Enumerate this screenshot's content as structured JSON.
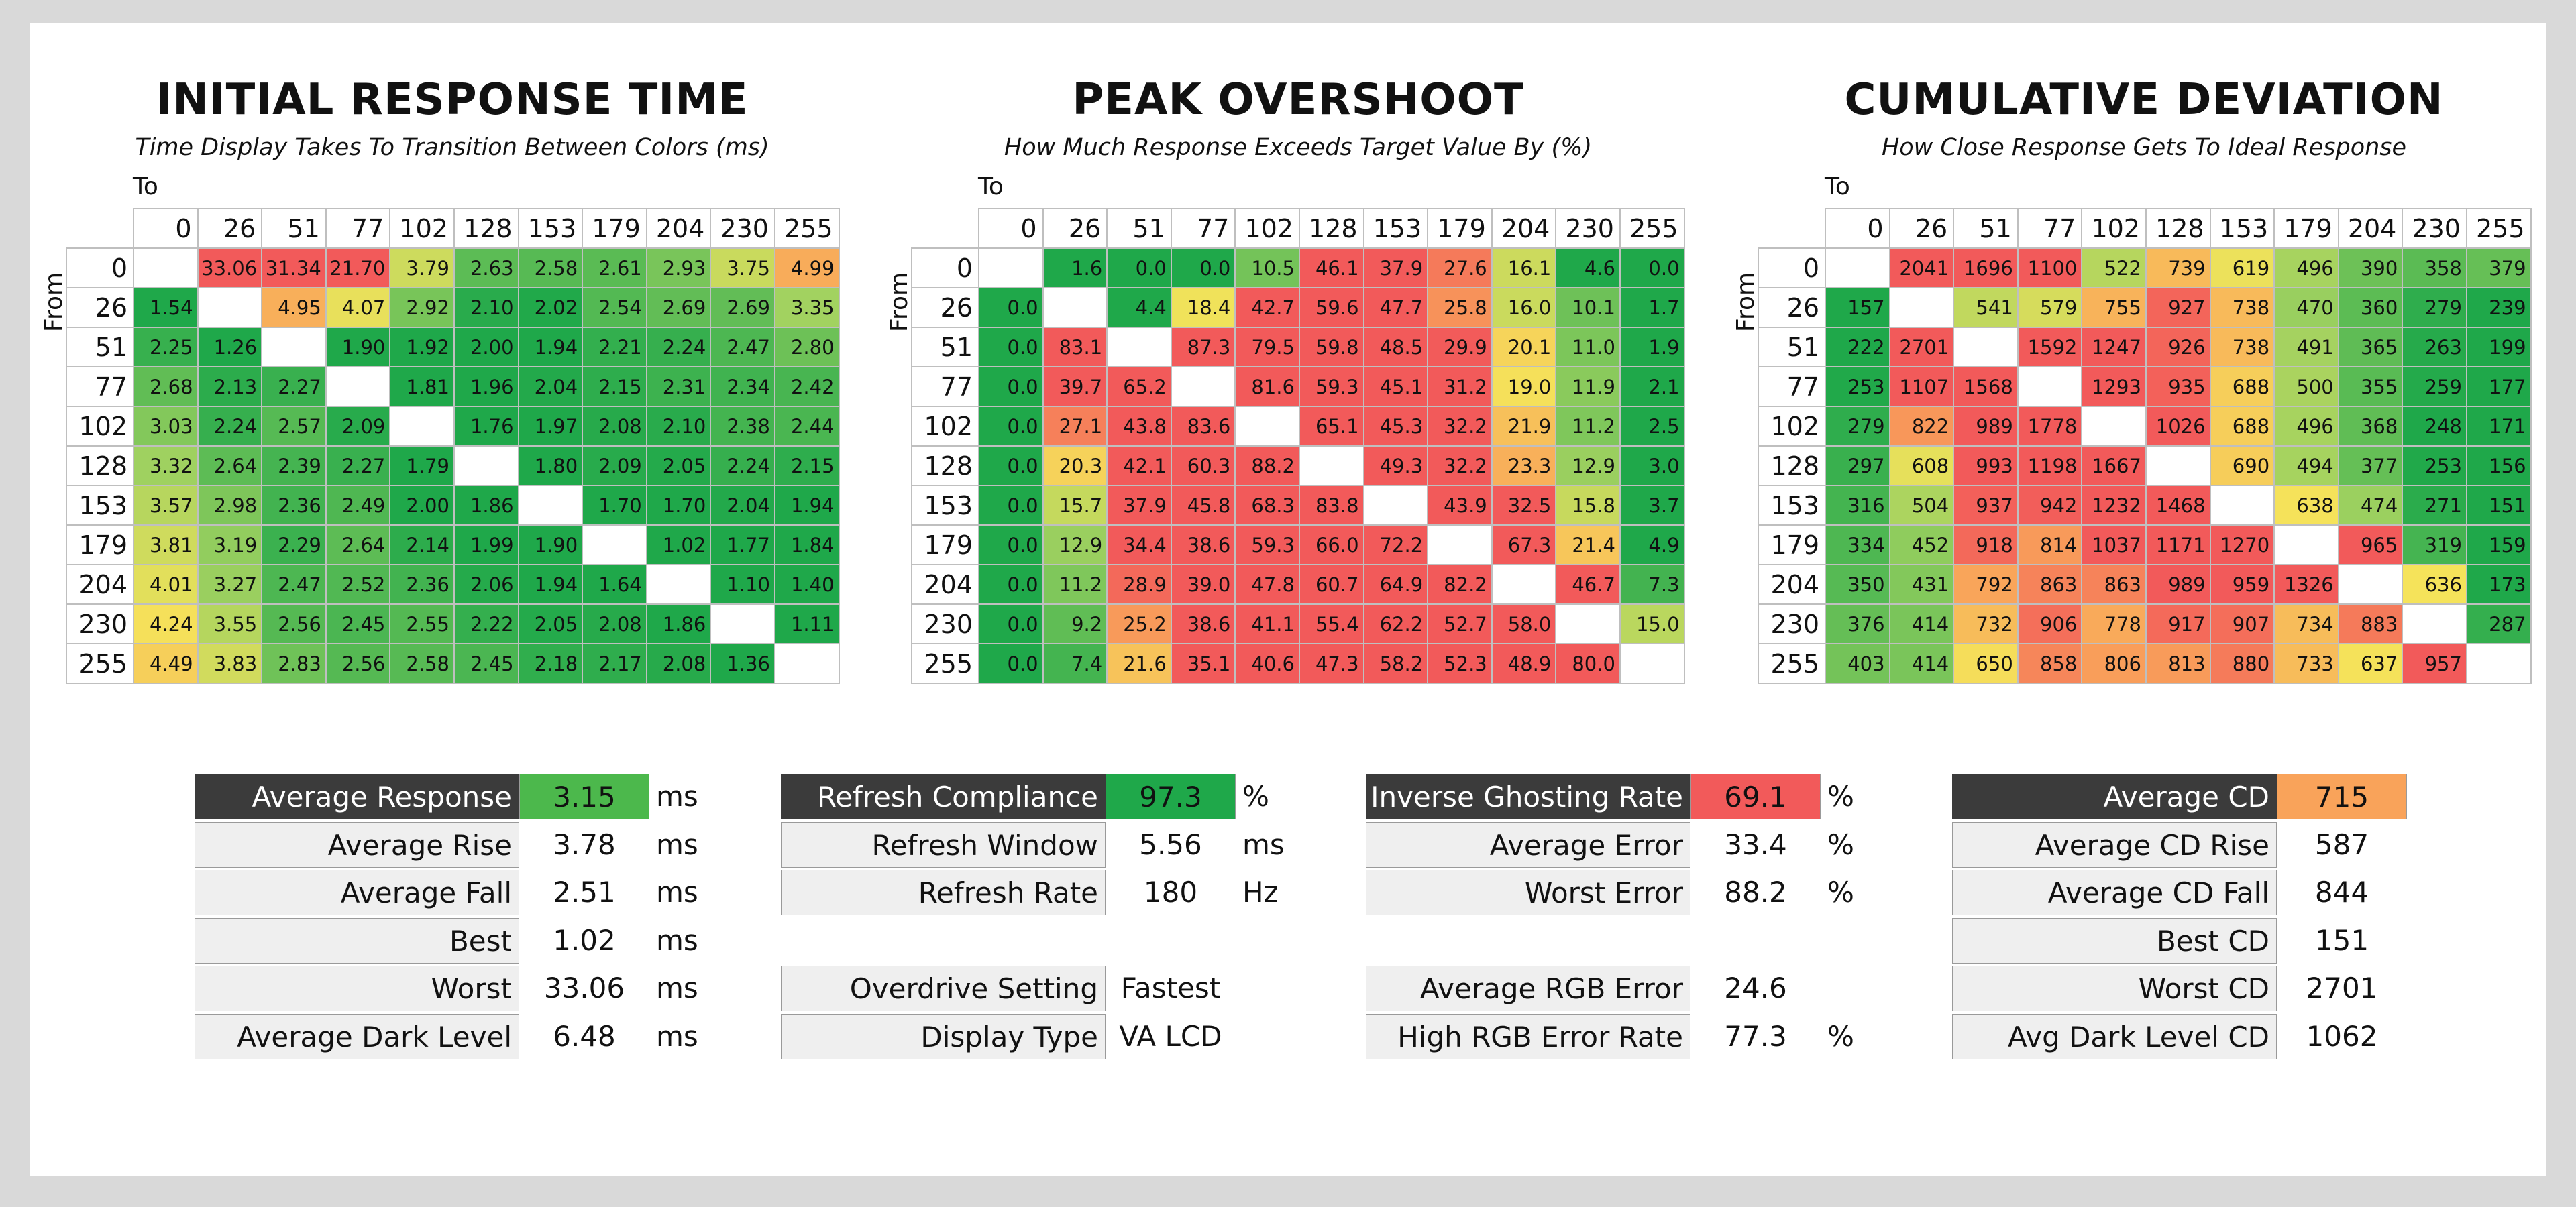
{
  "axis_labels": {
    "to": "To",
    "from": "From"
  },
  "chart_data": [
    {
      "type": "heatmap",
      "title": "INITIAL RESPONSE TIME",
      "subtitle": "Time Display Takes To Transition Between Colors (ms)",
      "x_categories": [
        "0",
        "26",
        "51",
        "77",
        "102",
        "128",
        "153",
        "179",
        "204",
        "230",
        "255"
      ],
      "y_categories": [
        "0",
        "26",
        "51",
        "77",
        "102",
        "128",
        "153",
        "179",
        "204",
        "230",
        "255"
      ],
      "xlabel": "To",
      "ylabel": "From",
      "values": [
        [
          null,
          "33.06",
          "31.34",
          "21.70",
          "3.79",
          "2.63",
          "2.58",
          "2.61",
          "2.93",
          "3.75",
          "4.99"
        ],
        [
          "1.54",
          null,
          "4.95",
          "4.07",
          "2.92",
          "2.10",
          "2.02",
          "2.54",
          "2.69",
          "2.69",
          "3.35"
        ],
        [
          "2.25",
          "1.26",
          null,
          "1.90",
          "1.92",
          "2.00",
          "1.94",
          "2.21",
          "2.24",
          "2.47",
          "2.80"
        ],
        [
          "2.68",
          "2.13",
          "2.27",
          null,
          "1.81",
          "1.96",
          "2.04",
          "2.15",
          "2.31",
          "2.34",
          "2.42"
        ],
        [
          "3.03",
          "2.24",
          "2.57",
          "2.09",
          null,
          "1.76",
          "1.97",
          "2.08",
          "2.10",
          "2.38",
          "2.44"
        ],
        [
          "3.32",
          "2.64",
          "2.39",
          "2.27",
          "1.79",
          null,
          "1.80",
          "2.09",
          "2.05",
          "2.24",
          "2.15"
        ],
        [
          "3.57",
          "2.98",
          "2.36",
          "2.49",
          "2.00",
          "1.86",
          null,
          "1.70",
          "1.70",
          "2.04",
          "1.94"
        ],
        [
          "3.81",
          "3.19",
          "2.29",
          "2.64",
          "2.14",
          "1.99",
          "1.90",
          null,
          "1.02",
          "1.77",
          "1.84"
        ],
        [
          "4.01",
          "3.27",
          "2.47",
          "2.52",
          "2.36",
          "2.06",
          "1.94",
          "1.64",
          null,
          "1.10",
          "1.40"
        ],
        [
          "4.24",
          "3.55",
          "2.56",
          "2.45",
          "2.55",
          "2.22",
          "2.05",
          "2.08",
          "1.86",
          null,
          "1.11"
        ],
        [
          "4.49",
          "3.83",
          "2.83",
          "2.56",
          "2.58",
          "2.45",
          "2.18",
          "2.17",
          "2.08",
          "1.36",
          null
        ]
      ],
      "color_scale": {
        "low": 2.0,
        "high": 6.0
      }
    },
    {
      "type": "heatmap",
      "title": "PEAK OVERSHOOT",
      "subtitle": "How Much Response Exceeds Target Value By (%)",
      "x_categories": [
        "0",
        "26",
        "51",
        "77",
        "102",
        "128",
        "153",
        "179",
        "204",
        "230",
        "255"
      ],
      "y_categories": [
        "0",
        "26",
        "51",
        "77",
        "102",
        "128",
        "153",
        "179",
        "204",
        "230",
        "255"
      ],
      "xlabel": "To",
      "ylabel": "From",
      "values": [
        [
          null,
          "1.6",
          "0.0",
          "0.0",
          "10.5",
          "46.1",
          "37.9",
          "27.6",
          "16.1",
          "4.6",
          "0.0"
        ],
        [
          "0.0",
          null,
          "4.4",
          "18.4",
          "42.7",
          "59.6",
          "47.7",
          "25.8",
          "16.0",
          "10.1",
          "1.7"
        ],
        [
          "0.0",
          "83.1",
          null,
          "87.3",
          "79.5",
          "59.8",
          "48.5",
          "29.9",
          "20.1",
          "11.0",
          "1.9"
        ],
        [
          "0.0",
          "39.7",
          "65.2",
          null,
          "81.6",
          "59.3",
          "45.1",
          "31.2",
          "19.0",
          "11.9",
          "2.1"
        ],
        [
          "0.0",
          "27.1",
          "43.8",
          "83.6",
          null,
          "65.1",
          "45.3",
          "32.2",
          "21.9",
          "11.2",
          "2.5"
        ],
        [
          "0.0",
          "20.3",
          "42.1",
          "60.3",
          "88.2",
          null,
          "49.3",
          "32.2",
          "23.3",
          "12.9",
          "3.0"
        ],
        [
          "0.0",
          "15.7",
          "37.9",
          "45.8",
          "68.3",
          "83.8",
          null,
          "43.9",
          "32.5",
          "15.8",
          "3.7"
        ],
        [
          "0.0",
          "12.9",
          "34.4",
          "38.6",
          "59.3",
          "66.0",
          "72.2",
          null,
          "67.3",
          "21.4",
          "4.9"
        ],
        [
          "0.0",
          "11.2",
          "28.9",
          "39.0",
          "47.8",
          "60.7",
          "64.9",
          "82.2",
          null,
          "46.7",
          "7.3"
        ],
        [
          "0.0",
          "9.2",
          "25.2",
          "38.6",
          "41.1",
          "55.4",
          "62.2",
          "52.7",
          "58.0",
          null,
          "15.0"
        ],
        [
          "0.0",
          "7.4",
          "21.6",
          "35.1",
          "40.6",
          "47.3",
          "58.2",
          "52.3",
          "48.9",
          "80.0",
          null
        ]
      ],
      "color_scale": {
        "low": 5,
        "high": 30
      }
    },
    {
      "type": "heatmap",
      "title": "CUMULATIVE DEVIATION",
      "subtitle": "How Close Response Gets To Ideal Response",
      "x_categories": [
        "0",
        "26",
        "51",
        "77",
        "102",
        "128",
        "153",
        "179",
        "204",
        "230",
        "255"
      ],
      "y_categories": [
        "0",
        "26",
        "51",
        "77",
        "102",
        "128",
        "153",
        "179",
        "204",
        "230",
        "255"
      ],
      "xlabel": "To",
      "ylabel": "From",
      "values": [
        [
          null,
          "2041",
          "1696",
          "1100",
          "522",
          "739",
          "619",
          "496",
          "390",
          "358",
          "379"
        ],
        [
          "157",
          null,
          "541",
          "579",
          "755",
          "927",
          "738",
          "470",
          "360",
          "279",
          "239"
        ],
        [
          "222",
          "2701",
          null,
          "1592",
          "1247",
          "926",
          "738",
          "491",
          "365",
          "263",
          "199"
        ],
        [
          "253",
          "1107",
          "1568",
          null,
          "1293",
          "935",
          "688",
          "500",
          "355",
          "259",
          "177"
        ],
        [
          "279",
          "822",
          "989",
          "1778",
          null,
          "1026",
          "688",
          "496",
          "368",
          "248",
          "171"
        ],
        [
          "297",
          "608",
          "993",
          "1198",
          "1667",
          null,
          "690",
          "494",
          "377",
          "253",
          "156"
        ],
        [
          "316",
          "504",
          "937",
          "942",
          "1232",
          "1468",
          null,
          "638",
          "474",
          "271",
          "151"
        ],
        [
          "334",
          "452",
          "918",
          "814",
          "1037",
          "1171",
          "1270",
          null,
          "965",
          "319",
          "159"
        ],
        [
          "350",
          "431",
          "792",
          "863",
          "863",
          "989",
          "959",
          "1326",
          null,
          "636",
          "173"
        ],
        [
          "376",
          "414",
          "732",
          "906",
          "778",
          "917",
          "907",
          "734",
          "883",
          null,
          "287"
        ],
        [
          "403",
          "414",
          "650",
          "858",
          "806",
          "813",
          "880",
          "733",
          "637",
          "957",
          null
        ]
      ],
      "color_scale": {
        "low": 250,
        "high": 950
      }
    }
  ],
  "stats": {
    "response": [
      {
        "label": "Average Response",
        "value": "3.15",
        "unit": "ms",
        "header": true,
        "color": "#4cb84c"
      },
      {
        "label": "Average Rise",
        "value": "3.78",
        "unit": "ms"
      },
      {
        "label": "Average Fall",
        "value": "2.51",
        "unit": "ms"
      },
      {
        "label": "Best",
        "value": "1.02",
        "unit": "ms"
      },
      {
        "label": "Worst",
        "value": "33.06",
        "unit": "ms"
      },
      {
        "label": "Average Dark Level",
        "value": "6.48",
        "unit": "ms"
      }
    ],
    "refresh": [
      {
        "label": "Refresh Compliance",
        "value": "97.3",
        "unit": "%",
        "header": true,
        "color": "#1fa84a"
      },
      {
        "label": "Refresh Window",
        "value": "5.56",
        "unit": "ms"
      },
      {
        "label": "Refresh Rate",
        "value": "180",
        "unit": "Hz"
      },
      {
        "label": "Overdrive Setting",
        "value": "Fastest",
        "unit": ""
      },
      {
        "label": "Display Type",
        "value": "VA LCD",
        "unit": ""
      }
    ],
    "overshoot": [
      {
        "label": "Inverse Ghosting Rate",
        "value": "69.1",
        "unit": "%",
        "header": true,
        "color": "#f25a5a"
      },
      {
        "label": "Average Error",
        "value": "33.4",
        "unit": "%"
      },
      {
        "label": "Worst Error",
        "value": "88.2",
        "unit": "%"
      },
      {
        "label": "Average RGB Error",
        "value": "24.6",
        "unit": ""
      },
      {
        "label": "High RGB Error Rate",
        "value": "77.3",
        "unit": "%"
      }
    ],
    "cd": [
      {
        "label": "Average CD",
        "value": "715",
        "unit": "",
        "header": true,
        "color": "#f9a35a"
      },
      {
        "label": "Average CD Rise",
        "value": "587",
        "unit": ""
      },
      {
        "label": "Average CD Fall",
        "value": "844",
        "unit": ""
      },
      {
        "label": "Best CD",
        "value": "151",
        "unit": ""
      },
      {
        "label": "Worst CD",
        "value": "2701",
        "unit": ""
      },
      {
        "label": "Avg Dark Level CD",
        "value": "1062",
        "unit": ""
      }
    ]
  },
  "colors": {
    "panel": "#ffffff",
    "background": "#d9d9d9",
    "header_label": "#3b3b3b",
    "label_cell": "#efefef",
    "scale_green": "#1fa84a",
    "scale_yellow": "#f5e35a",
    "scale_orange": "#f9a35a",
    "scale_red": "#f25a5a"
  }
}
